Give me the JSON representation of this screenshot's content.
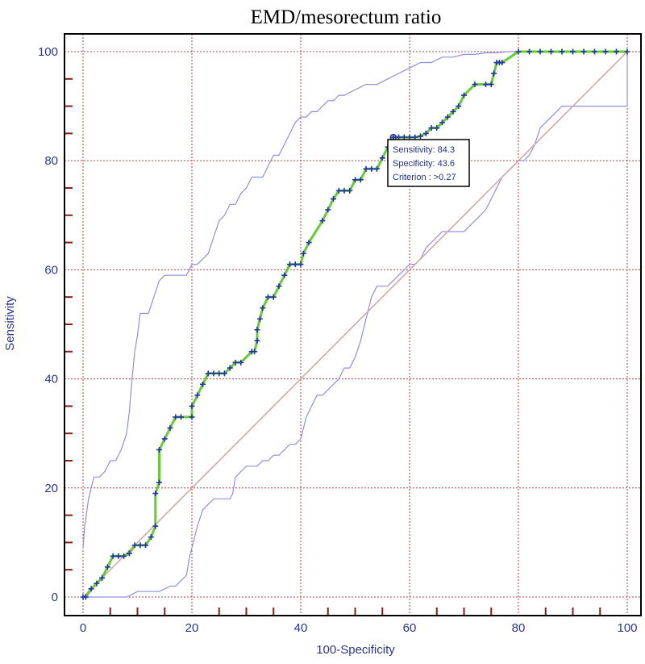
{
  "chart_data": {
    "type": "line",
    "title": "EMD/mesorectum ratio",
    "xlabel": "100-Specificity",
    "ylabel": "Sensitivity",
    "xlim": [
      0,
      100
    ],
    "ylim": [
      0,
      100
    ],
    "x_ticks": [
      "0",
      "20",
      "40",
      "60",
      "80",
      "100"
    ],
    "y_ticks": [
      "0",
      "20",
      "40",
      "60",
      "80",
      "100"
    ],
    "grid": true,
    "legend": "none",
    "colors": {
      "roc_curve": "#66cc33",
      "roc_markers": "#2233aa",
      "confidence_band": "#8f8fe0",
      "reference_line": "#d9a0a0",
      "grid": "#b04040",
      "axis_text": "#2a3590",
      "minor_ticks": "#8b1a1a"
    },
    "series": [
      {
        "role": "roc",
        "x": [
          0,
          0.5,
          1.5,
          2.5,
          3.5,
          4.5,
          5.5,
          6.5,
          7.5,
          8.5,
          9.5,
          10.5,
          11.5,
          12.5,
          13.3,
          13.3,
          14,
          14,
          15,
          16,
          17,
          18,
          20,
          20,
          21,
          22,
          23,
          24,
          25,
          26,
          27,
          28,
          29,
          31,
          31.5,
          32,
          32,
          32.5,
          33,
          34,
          35,
          36,
          37,
          38,
          39,
          40,
          40.5,
          41.5,
          44,
          45,
          46,
          47,
          48,
          49,
          50,
          51,
          52,
          53,
          54,
          55,
          56,
          57,
          58,
          59,
          60,
          61,
          62,
          63,
          64,
          65,
          66,
          67,
          68,
          69,
          70,
          72,
          74,
          75,
          75.5,
          76,
          76.5,
          77,
          80,
          82,
          84,
          86,
          88,
          90,
          92,
          94,
          96,
          98,
          100
        ],
        "y": [
          0,
          0,
          1.5,
          2.5,
          3.5,
          5.5,
          7.5,
          7.5,
          7.5,
          8,
          9.5,
          9.5,
          9.5,
          11,
          13,
          19,
          21,
          27,
          29,
          31,
          33,
          33,
          33,
          35,
          37,
          39,
          41,
          41,
          41,
          41,
          42,
          43,
          43,
          45,
          45,
          47,
          49,
          51,
          53,
          55,
          55,
          57,
          59,
          61,
          61,
          61,
          63,
          65,
          69,
          71,
          73,
          74.5,
          74.5,
          74.5,
          76.5,
          76.5,
          78.5,
          78.5,
          78.5,
          80.5,
          82.5,
          84.3,
          84.3,
          84.3,
          84.3,
          84.3,
          84.5,
          85,
          86,
          86,
          87,
          88,
          89,
          90,
          92,
          94,
          94,
          94,
          96,
          98,
          98,
          98,
          100,
          100,
          100,
          100,
          100,
          100,
          100,
          100,
          100,
          100,
          100
        ],
        "markers": true
      },
      {
        "role": "ci_upper",
        "x": [
          0,
          0.3,
          0.6,
          1,
          1.5,
          2,
          3,
          4,
          5,
          6,
          7,
          8,
          8.5,
          9,
          9.5,
          10,
          10.5,
          11,
          12,
          13,
          14,
          15,
          16,
          17,
          18,
          19,
          20,
          21,
          22,
          23,
          24,
          25,
          26,
          27,
          28,
          29,
          30,
          31,
          32,
          33,
          34,
          35,
          36,
          37,
          38,
          39,
          40,
          41,
          42,
          43,
          44,
          45,
          46,
          47,
          48,
          50,
          52,
          54,
          56,
          58,
          60,
          62,
          64,
          66,
          68,
          70,
          72,
          74,
          76,
          78,
          80,
          90,
          100
        ],
        "y": [
          9,
          13,
          15,
          18,
          20,
          22,
          22,
          23,
          25,
          25,
          27,
          30,
          34,
          40,
          45,
          48,
          52,
          52,
          52,
          55,
          58,
          59,
          59,
          59,
          59,
          59,
          61,
          61,
          62,
          63,
          66,
          69,
          70,
          72,
          72,
          74,
          75,
          77,
          77,
          77,
          79,
          81,
          81,
          83,
          85,
          87,
          88,
          88,
          89,
          89,
          90,
          91,
          91,
          92,
          92,
          93,
          94,
          94,
          95,
          96,
          97,
          98,
          98,
          99,
          99,
          99.5,
          99.5,
          99.8,
          99.8,
          100,
          100,
          100,
          100
        ]
      },
      {
        "role": "ci_lower",
        "x": [
          0,
          6,
          8,
          10,
          12,
          14,
          16,
          17,
          18,
          19,
          19.5,
          20,
          20.5,
          21,
          22,
          23,
          24,
          26,
          27,
          27.5,
          28,
          29,
          30,
          31,
          32,
          33,
          34,
          35,
          36,
          37,
          38,
          39,
          40,
          41,
          42,
          43,
          44,
          45,
          46,
          47,
          48,
          49,
          50,
          51,
          52,
          53,
          54,
          55,
          56,
          57,
          58,
          59,
          60,
          61,
          62,
          63,
          64,
          65,
          66,
          67,
          68,
          69,
          70,
          71,
          72,
          73,
          74,
          75,
          76,
          77,
          78,
          79,
          80,
          81,
          82,
          83,
          84,
          85,
          86,
          87,
          88,
          89,
          90,
          92,
          94,
          96,
          98,
          100,
          100
        ],
        "y": [
          0,
          0,
          0,
          1,
          1,
          1,
          2,
          2,
          3,
          4,
          7,
          9,
          11,
          13,
          16,
          17,
          18,
          18,
          18,
          19,
          22,
          23,
          24,
          24,
          24,
          25,
          25,
          26,
          26,
          27,
          28,
          28,
          29,
          33,
          35,
          37,
          37,
          38,
          39,
          40,
          42,
          42,
          44,
          47,
          51,
          55,
          57,
          57,
          57,
          58,
          59,
          60,
          61,
          61,
          62,
          64,
          65,
          66,
          67,
          67,
          67,
          67,
          67,
          68,
          69,
          70,
          71,
          73,
          75,
          77,
          78,
          79,
          80,
          80,
          81,
          83,
          86,
          87,
          88,
          89,
          90,
          90,
          90,
          90,
          90,
          90,
          90,
          90,
          100
        ]
      },
      {
        "role": "reference",
        "x": [
          0,
          100
        ],
        "y": [
          0,
          100
        ]
      }
    ],
    "annotation": {
      "point": [
        57,
        84.3
      ],
      "lines": [
        "Sensitivity: 84.3",
        "Specificity: 43.6",
        "Criterion : >0.27"
      ]
    }
  }
}
